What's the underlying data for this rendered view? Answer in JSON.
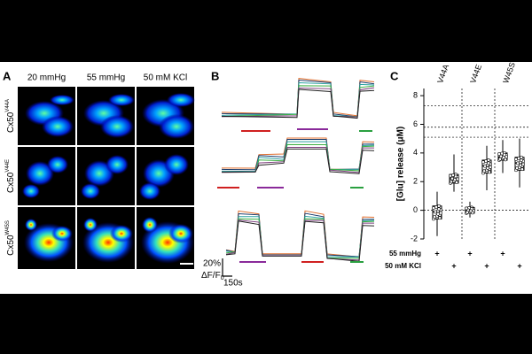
{
  "panel_a": {
    "label": "A",
    "columns": [
      "20 mmHg",
      "55 mmHg",
      "50 mM KCl"
    ],
    "rows": [
      {
        "base": "Cx50",
        "sup": "V44A"
      },
      {
        "base": "Cx50",
        "sup": "V44E"
      },
      {
        "base": "Cx50",
        "sup": "W45S"
      }
    ]
  },
  "panel_b": {
    "label": "B",
    "scale_y": "20%",
    "scale_unit": "ΔF/F",
    "scale_sub": "0",
    "scale_x": "150s"
  },
  "panel_c": {
    "label": "C",
    "ylabel": "[Glu] release (μM)",
    "ylim": [
      -2,
      8.5
    ],
    "yticks": [
      -2,
      0,
      2,
      4,
      6,
      8
    ],
    "groups": [
      "V44A",
      "V44E",
      "W45S"
    ],
    "reference_lines": [
      7.3,
      5.8,
      5.1,
      0
    ],
    "boxes": [
      {
        "min": -1.8,
        "q1": -0.6,
        "median": -0.1,
        "q3": 0.3,
        "max": 1.3
      },
      {
        "min": 1.3,
        "q1": 1.9,
        "median": 2.2,
        "q3": 2.5,
        "max": 3.9
      },
      {
        "min": -0.5,
        "q1": -0.2,
        "median": 0,
        "q3": 0.2,
        "max": 0.6
      },
      {
        "min": 1.4,
        "q1": 2.6,
        "median": 3.1,
        "q3": 3.5,
        "max": 4.5
      },
      {
        "min": 2.6,
        "q1": 3.5,
        "median": 3.7,
        "q3": 4.0,
        "max": 4.9
      },
      {
        "min": 1.6,
        "q1": 2.8,
        "median": 3.3,
        "q3": 3.7,
        "max": 5.0
      }
    ],
    "conditions": [
      {
        "label": "55 mmHg",
        "marks": [
          "+",
          "+",
          "+"
        ]
      },
      {
        "label": "50 mM KCl",
        "marks": [
          "+",
          "+",
          "+"
        ]
      }
    ]
  }
}
